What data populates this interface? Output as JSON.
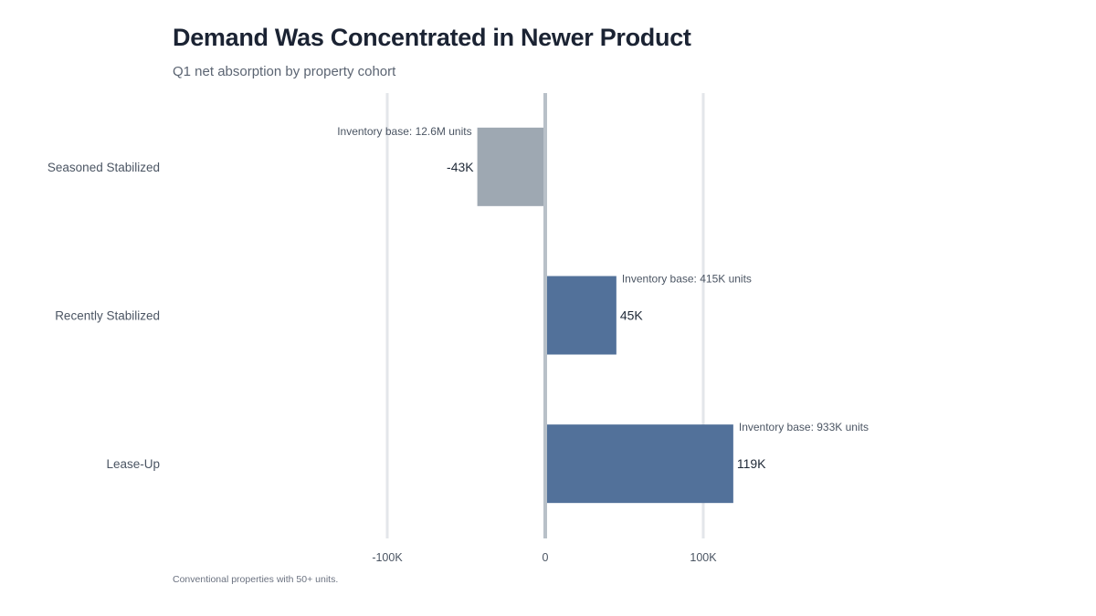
{
  "chart_data": {
    "type": "bar",
    "orientation": "horizontal",
    "title": "Demand Was Concentrated in Newer Product",
    "subtitle": "Q1 net absorption by property cohort",
    "note": "Conventional properties with 50+ units.",
    "xlabel": "",
    "ylabel": "",
    "unit": "K units",
    "xlim": [
      -100,
      100
    ],
    "xticks": [
      {
        "value": -100,
        "label": "-100K"
      },
      {
        "value": 0,
        "label": "0"
      },
      {
        "value": 100,
        "label": "100K"
      }
    ],
    "grid": true,
    "categories": [
      "Seasoned Stabilized",
      "Recently Stabilized",
      "Lease-Up"
    ],
    "values": [
      -43,
      45,
      119
    ],
    "value_labels": [
      "-43K",
      "45K",
      "119K"
    ],
    "annotations": [
      "Inventory base: 12.6M units",
      "Inventory base: 415K units",
      "Inventory base: 933K units"
    ],
    "colors": [
      "#9ea8b2",
      "#52719a",
      "#52719a"
    ]
  }
}
